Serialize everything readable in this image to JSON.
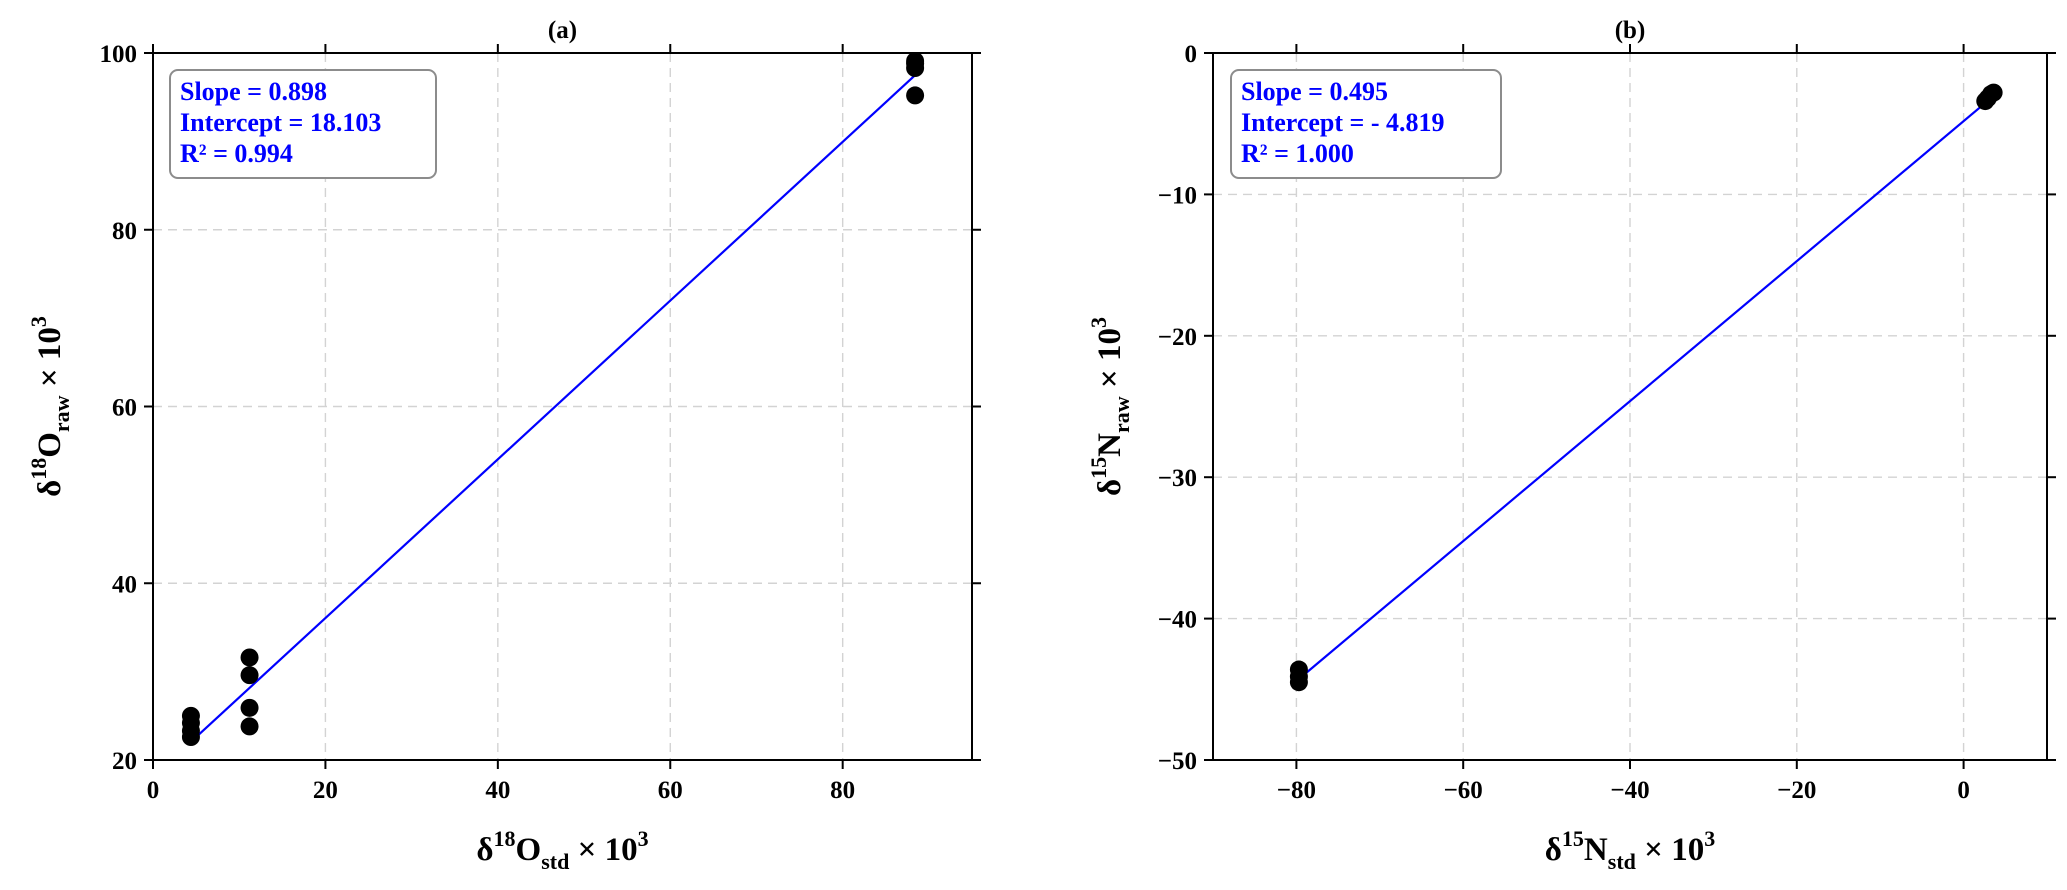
{
  "chart_data": [
    {
      "type": "scatter",
      "title": "(a)",
      "xlabel": {
        "prefix": "δ",
        "sup": "18",
        "main": "O",
        "sub": "std",
        "suffix": " × 10",
        "power": "3"
      },
      "ylabel": {
        "prefix": "δ",
        "sup": "18",
        "main": "O",
        "sub": "raw",
        "suffix": " × 10",
        "power": "3"
      },
      "xlim": [
        0,
        95
      ],
      "ylim": [
        20,
        100
      ],
      "xticks": [
        0,
        20,
        40,
        60,
        80
      ],
      "yticks": [
        20,
        40,
        60,
        80,
        100
      ],
      "grid": true,
      "series": [
        {
          "points": [
            [
              4.4,
              22.6
            ],
            [
              4.4,
              23.3
            ],
            [
              4.4,
              24.2
            ],
            [
              4.4,
              25.0
            ],
            [
              11.2,
              23.8
            ],
            [
              11.2,
              25.9
            ],
            [
              11.2,
              29.6
            ],
            [
              11.2,
              31.6
            ],
            [
              88.4,
              95.2
            ],
            [
              88.4,
              98.3
            ],
            [
              88.4,
              98.8
            ],
            [
              88.4,
              99.1
            ]
          ]
        }
      ],
      "fit": {
        "slope": 0.898,
        "intercept": 18.103,
        "x_range": [
          4.4,
          88.4
        ]
      },
      "stats": [
        "Slope = 0.898",
        "Intercept = 18.103",
        "R² = 0.994"
      ],
      "legend_placement": "top-left"
    },
    {
      "type": "scatter",
      "title": "(b)",
      "xlabel": {
        "prefix": "δ",
        "sup": "15",
        "main": "N",
        "sub": "std",
        "suffix": " × 10",
        "power": "3"
      },
      "ylabel": {
        "prefix": "δ",
        "sup": "15",
        "main": "N",
        "sub": "raw",
        "suffix": " × 10",
        "power": "3"
      },
      "xlim": [
        -90,
        10
      ],
      "ylim": [
        -50,
        0
      ],
      "xticks": [
        -80,
        -60,
        -40,
        -20,
        0
      ],
      "yticks": [
        -50,
        -40,
        -30,
        -20,
        -10,
        0
      ],
      "grid": true,
      "series": [
        {
          "points": [
            [
              -79.7,
              -43.6
            ],
            [
              -79.7,
              -44.1
            ],
            [
              -79.7,
              -44.5
            ],
            [
              2.6,
              -3.4
            ],
            [
              2.9,
              -3.2
            ],
            [
              3.3,
              -2.9
            ],
            [
              3.6,
              -2.8
            ]
          ]
        }
      ],
      "fit": {
        "slope": 0.495,
        "intercept": -4.819,
        "x_range": [
          -79.7,
          3.6
        ]
      },
      "stats": [
        "Slope = 0.495",
        "Intercept = - 4.819",
        "R² = 1.000"
      ],
      "legend_placement": "top-left"
    }
  ]
}
